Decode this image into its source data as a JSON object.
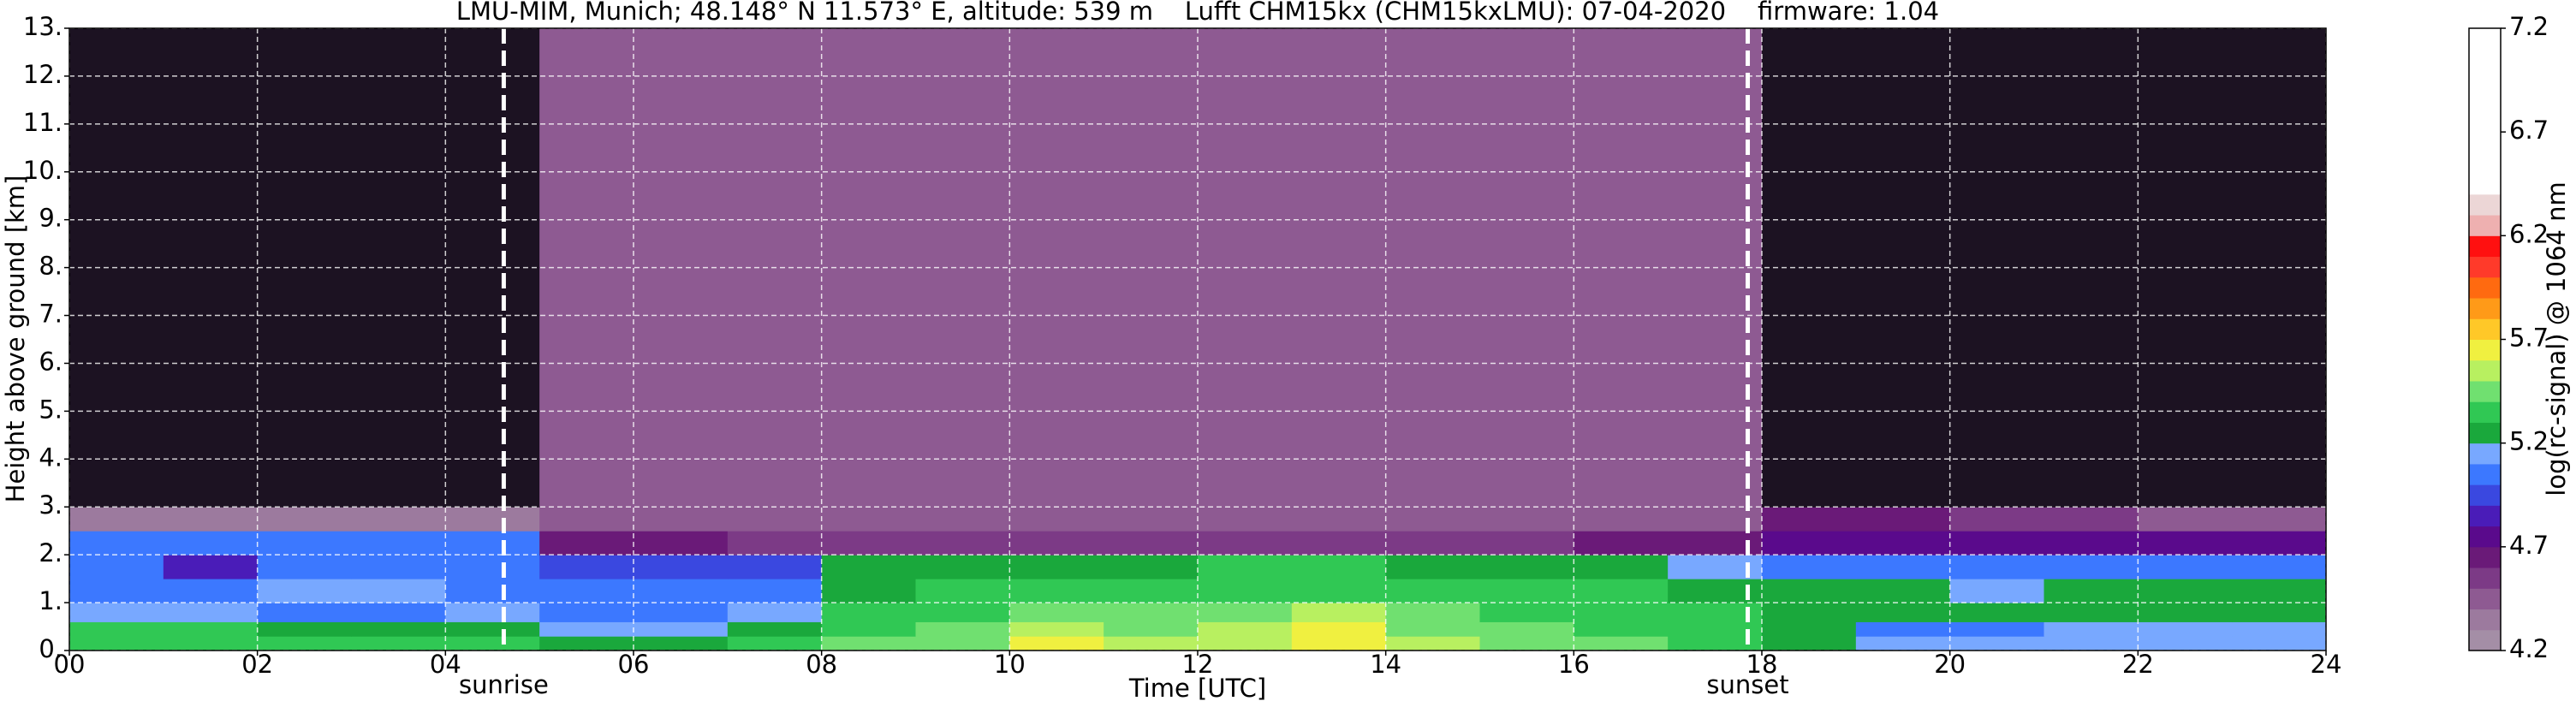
{
  "chart_data": {
    "type": "heatmap",
    "title": "LMU-MIM, Munich; 48.148° N 11.573° E, altitude: 539 m    Lufft CHM15kx (CHM15kxLMU): 07-04-2020    firmware: 1.04",
    "xlabel": "Time [UTC]",
    "ylabel": "Height above ground [km]",
    "colorbar_label": "log(rc-signal) @ 1064 nm",
    "x_edges": [
      0,
      1,
      2,
      3,
      4,
      5,
      6,
      7,
      8,
      9,
      10,
      11,
      12,
      13,
      14,
      15,
      16,
      17,
      18,
      19,
      20,
      21,
      22,
      23,
      24
    ],
    "y_edges": [
      0,
      0.3,
      0.6,
      1.0,
      1.5,
      2.0,
      2.5,
      3.0,
      13.0
    ],
    "values": [
      [
        5.3,
        5.3,
        5.3,
        5.3,
        5.3,
        5.2,
        5.2,
        5.3,
        5.4,
        5.4,
        5.6,
        5.5,
        5.5,
        5.6,
        5.5,
        5.4,
        5.4,
        5.3,
        5.2,
        5.1,
        5.1,
        5.1,
        5.1,
        5.1
      ],
      [
        5.3,
        5.3,
        5.2,
        5.2,
        5.2,
        5.1,
        5.1,
        5.2,
        5.3,
        5.4,
        5.5,
        5.4,
        5.5,
        5.6,
        5.4,
        5.4,
        5.3,
        5.3,
        5.2,
        5.0,
        5.0,
        5.1,
        5.1,
        5.1
      ],
      [
        5.1,
        5.1,
        5.0,
        5.0,
        5.1,
        5.0,
        5.0,
        5.1,
        5.3,
        5.3,
        5.4,
        5.4,
        5.4,
        5.5,
        5.4,
        5.3,
        5.3,
        5.3,
        5.2,
        5.2,
        5.2,
        5.2,
        5.2,
        5.2
      ],
      [
        5.0,
        5.0,
        5.1,
        5.1,
        5.0,
        5.0,
        5.0,
        5.0,
        5.2,
        5.3,
        5.3,
        5.3,
        5.3,
        5.3,
        5.3,
        5.3,
        5.3,
        5.2,
        5.2,
        5.2,
        5.1,
        5.2,
        5.2,
        5.2
      ],
      [
        5.0,
        4.8,
        5.0,
        5.0,
        5.0,
        4.9,
        4.9,
        4.9,
        5.2,
        5.2,
        5.2,
        5.2,
        5.3,
        5.3,
        5.2,
        5.2,
        5.2,
        5.1,
        5.0,
        5.0,
        5.0,
        5.0,
        5.0,
        5.0
      ],
      [
        5.0,
        5.0,
        5.0,
        5.0,
        5.0,
        4.6,
        4.6,
        4.5,
        4.5,
        4.5,
        4.5,
        4.5,
        4.5,
        4.5,
        4.5,
        4.5,
        4.6,
        4.6,
        4.7,
        4.7,
        4.7,
        4.7,
        4.7,
        4.7
      ],
      [
        4.3,
        4.3,
        4.3,
        4.3,
        4.3,
        4.4,
        4.4,
        4.4,
        4.4,
        4.4,
        4.4,
        4.4,
        4.4,
        4.4,
        4.4,
        4.4,
        4.4,
        4.4,
        4.6,
        4.6,
        4.5,
        4.5,
        4.4,
        4.4
      ],
      [
        4.1,
        4.1,
        4.1,
        4.1,
        4.1,
        4.4,
        4.4,
        4.4,
        4.4,
        4.4,
        4.4,
        4.4,
        4.4,
        4.4,
        4.4,
        4.4,
        4.4,
        4.4,
        4.1,
        4.1,
        4.1,
        4.1,
        4.1,
        4.1
      ]
    ],
    "xlim": [
      0,
      24
    ],
    "xticks": [
      {
        "value": 0,
        "label": "00"
      },
      {
        "value": 2,
        "label": "02"
      },
      {
        "value": 4,
        "label": "04"
      },
      {
        "value": 6,
        "label": "06"
      },
      {
        "value": 8,
        "label": "08"
      },
      {
        "value": 10,
        "label": "10"
      },
      {
        "value": 12,
        "label": "12"
      },
      {
        "value": 14,
        "label": "14"
      },
      {
        "value": 16,
        "label": "16"
      },
      {
        "value": 18,
        "label": "18"
      },
      {
        "value": 20,
        "label": "20"
      },
      {
        "value": 22,
        "label": "22"
      },
      {
        "value": 24,
        "label": "24"
      }
    ],
    "ylim": [
      0,
      13
    ],
    "yticks": [
      {
        "value": 0,
        "label": "0."
      },
      {
        "value": 1,
        "label": "1."
      },
      {
        "value": 2,
        "label": "2."
      },
      {
        "value": 3,
        "label": "3."
      },
      {
        "value": 4,
        "label": "4."
      },
      {
        "value": 5,
        "label": "5."
      },
      {
        "value": 6,
        "label": "6."
      },
      {
        "value": 7,
        "label": "7."
      },
      {
        "value": 8,
        "label": "8."
      },
      {
        "value": 9,
        "label": "9."
      },
      {
        "value": 10,
        "label": "10."
      },
      {
        "value": 11,
        "label": "11."
      },
      {
        "value": 12,
        "label": "12."
      },
      {
        "value": 13,
        "label": "13."
      }
    ],
    "clim": [
      4.2,
      7.2
    ],
    "cticks": [
      4.2,
      4.7,
      5.2,
      5.7,
      6.2,
      6.7,
      7.2
    ],
    "color_step": 0.1,
    "colors": [
      "#a48ea6",
      "#9c7a9e",
      "#8e5a92",
      "#7c3a86",
      "#6a1a78",
      "#5a0a8c",
      "#4a1cb8",
      "#3a48e0",
      "#3c78ff",
      "#78a8ff",
      "#1aa83c",
      "#30c854",
      "#70e070",
      "#b8f060",
      "#f0f040",
      "#ffc828",
      "#ff9a18",
      "#ff6a10",
      "#ff3a2a",
      "#ff1010",
      "#eeb0b0",
      "#ecd6d6",
      "#ffffff",
      "#ffffff",
      "#ffffff",
      "#ffffff",
      "#ffffff",
      "#ffffff",
      "#ffffff",
      "#ffffff"
    ],
    "under_color": "#1c1222",
    "grid": true,
    "annotations": [
      {
        "text": "sunrise",
        "x": 4.62
      },
      {
        "text": "sunset",
        "x": 17.85
      }
    ]
  }
}
